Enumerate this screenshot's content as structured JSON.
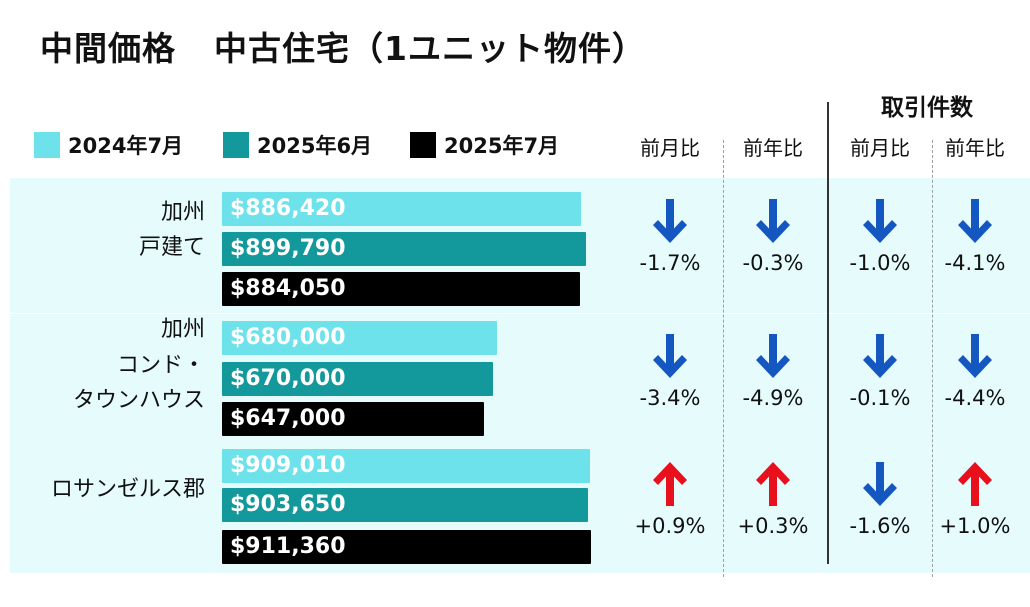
{
  "title": {
    "part1": "中間価格",
    "part2": "中古住宅（1ユニット物件）"
  },
  "legend": [
    {
      "label": "2024年7月",
      "color": "#6ee2ea"
    },
    {
      "label": "2025年6月",
      "color": "#13999b"
    },
    {
      "label": "2025年7月",
      "color": "#000000"
    }
  ],
  "columns": {
    "group_label": "取引件数",
    "headers": [
      "前月比",
      "前年比",
      "前月比",
      "前年比"
    ]
  },
  "colors": {
    "band": "#e6fbfc",
    "up": "#e8101c",
    "down": "#1557c0"
  },
  "chart_data": {
    "type": "bar",
    "categories": [
      "加州戸建て",
      "加州コンド・タウンハウス",
      "ロサンゼルス郡"
    ],
    "series": [
      {
        "name": "2024年7月",
        "values": [
          886420,
          680000,
          909010
        ]
      },
      {
        "name": "2025年6月",
        "values": [
          899790,
          670000,
          903650
        ]
      },
      {
        "name": "2025年7月",
        "values": [
          884050,
          647000,
          911360
        ]
      }
    ]
  },
  "rows": [
    {
      "label_lines": [
        "加州",
        "戸建て"
      ],
      "bars": [
        {
          "value": 886420,
          "text": "$886,420"
        },
        {
          "value": 899790,
          "text": "$899,790"
        },
        {
          "value": 884050,
          "text": "$884,050"
        }
      ],
      "changes": [
        {
          "dir": "down",
          "text": "-1.7%"
        },
        {
          "dir": "down",
          "text": "-0.3%"
        },
        {
          "dir": "down",
          "text": "-1.0%"
        },
        {
          "dir": "down",
          "text": "-4.1%"
        }
      ]
    },
    {
      "label_lines": [
        "加州",
        "コンド・",
        "タウンハウス"
      ],
      "bars": [
        {
          "value": 680000,
          "text": "$680,000"
        },
        {
          "value": 670000,
          "text": "$670,000"
        },
        {
          "value": 647000,
          "text": "$647,000"
        }
      ],
      "changes": [
        {
          "dir": "down",
          "text": "-3.4%"
        },
        {
          "dir": "down",
          "text": "-4.9%"
        },
        {
          "dir": "down",
          "text": "-0.1%"
        },
        {
          "dir": "down",
          "text": "-4.4%"
        }
      ]
    },
    {
      "label_lines": [
        "ロサンゼルス郡"
      ],
      "bars": [
        {
          "value": 909010,
          "text": "$909,010"
        },
        {
          "value": 903650,
          "text": "$903,650"
        },
        {
          "value": 911360,
          "text": "$911,360"
        }
      ],
      "changes": [
        {
          "dir": "up",
          "text": "+0.9%"
        },
        {
          "dir": "up",
          "text": "+0.3%"
        },
        {
          "dir": "down",
          "text": "-1.6%"
        },
        {
          "dir": "up",
          "text": "+1.0%"
        }
      ]
    }
  ]
}
